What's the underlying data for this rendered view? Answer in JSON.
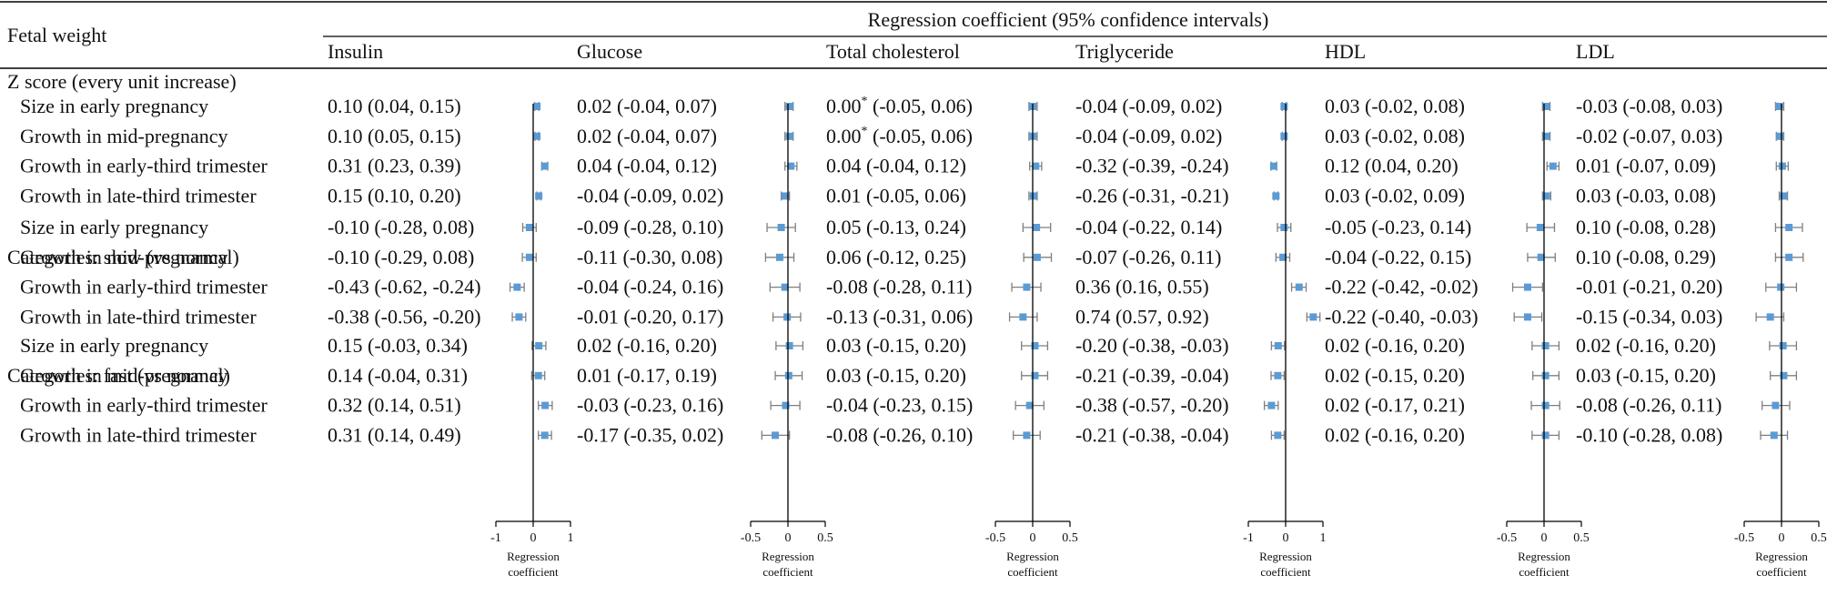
{
  "chart_data": {
    "type": "forest",
    "title": "Regression coefficient (95% confidence intervals)",
    "row_header": "Fetal weight",
    "axis_label_line1": "Regression",
    "axis_label_line2": "coefficient",
    "footnote_marker": "*",
    "sections": [
      {
        "label": "Z score (every unit increase)",
        "rows": [
          "Size in early pregnancy",
          "Growth in mid-pregnancy",
          "Growth in early-third trimester",
          "Growth in late-third trimester"
        ]
      },
      {
        "label": "Categories: slow (vs normal)",
        "rows": [
          "Size in early pregnancy",
          "Growth in mid-pregnancy",
          "Growth in early-third trimester",
          "Growth in late-third trimester"
        ]
      },
      {
        "label": "Categories: fast (vs normal)",
        "rows": [
          "Size in early pregnancy",
          "Growth in mid-pregnancy",
          "Growth in early-third trimester",
          "Growth in late-third trimester"
        ]
      }
    ],
    "series": [
      {
        "name": "Insulin",
        "xlim": [
          -1,
          1
        ],
        "ticks": [
          "-1",
          "0",
          "1"
        ],
        "values": [
          {
            "text": "0.10 (0.04, 0.15)",
            "est": 0.1,
            "lo": 0.04,
            "hi": 0.15
          },
          {
            "text": "0.10 (0.05, 0.15)",
            "est": 0.1,
            "lo": 0.05,
            "hi": 0.15
          },
          {
            "text": "0.31 (0.23, 0.39)",
            "est": 0.31,
            "lo": 0.23,
            "hi": 0.39
          },
          {
            "text": "0.15 (0.10, 0.20)",
            "est": 0.15,
            "lo": 0.1,
            "hi": 0.2
          },
          {
            "text": "-0.10 (-0.28, 0.08)",
            "est": -0.1,
            "lo": -0.28,
            "hi": 0.08
          },
          {
            "text": "-0.10 (-0.29, 0.08)",
            "est": -0.1,
            "lo": -0.29,
            "hi": 0.08
          },
          {
            "text": "-0.43 (-0.62, -0.24)",
            "est": -0.43,
            "lo": -0.62,
            "hi": -0.24
          },
          {
            "text": "-0.38 (-0.56, -0.20)",
            "est": -0.38,
            "lo": -0.56,
            "hi": -0.2
          },
          {
            "text": "0.15 (-0.03, 0.34)",
            "est": 0.15,
            "lo": -0.03,
            "hi": 0.34
          },
          {
            "text": "0.14 (-0.04, 0.31)",
            "est": 0.14,
            "lo": -0.04,
            "hi": 0.31
          },
          {
            "text": "0.32 (0.14, 0.51)",
            "est": 0.32,
            "lo": 0.14,
            "hi": 0.51
          },
          {
            "text": "0.31 (0.14, 0.49)",
            "est": 0.31,
            "lo": 0.14,
            "hi": 0.49
          }
        ]
      },
      {
        "name": "Glucose",
        "xlim": [
          -0.5,
          0.5
        ],
        "ticks": [
          "-0.5",
          "0",
          "0.5"
        ],
        "values": [
          {
            "text": "0.02 (-0.04, 0.07)",
            "est": 0.02,
            "lo": -0.04,
            "hi": 0.07
          },
          {
            "text": "0.02 (-0.04, 0.07)",
            "est": 0.02,
            "lo": -0.04,
            "hi": 0.07
          },
          {
            "text": "0.04 (-0.04, 0.12)",
            "est": 0.04,
            "lo": -0.04,
            "hi": 0.12
          },
          {
            "text": "-0.04 (-0.09, 0.02)",
            "est": -0.04,
            "lo": -0.09,
            "hi": 0.02
          },
          {
            "text": "-0.09 (-0.28, 0.10)",
            "est": -0.09,
            "lo": -0.28,
            "hi": 0.1
          },
          {
            "text": "-0.11 (-0.30, 0.08)",
            "est": -0.11,
            "lo": -0.3,
            "hi": 0.08
          },
          {
            "text": "-0.04 (-0.24, 0.16)",
            "est": -0.04,
            "lo": -0.24,
            "hi": 0.16
          },
          {
            "text": "-0.01 (-0.20, 0.17)",
            "est": -0.01,
            "lo": -0.2,
            "hi": 0.17
          },
          {
            "text": "0.02 (-0.16, 0.20)",
            "est": 0.02,
            "lo": -0.16,
            "hi": 0.2
          },
          {
            "text": "0.01 (-0.17, 0.19)",
            "est": 0.01,
            "lo": -0.17,
            "hi": 0.19
          },
          {
            "text": "-0.03 (-0.23, 0.16)",
            "est": -0.03,
            "lo": -0.23,
            "hi": 0.16
          },
          {
            "text": "-0.17 (-0.35, 0.02)",
            "est": -0.17,
            "lo": -0.35,
            "hi": 0.02
          }
        ]
      },
      {
        "name": "Total cholesterol",
        "xlim": [
          -0.5,
          0.5
        ],
        "ticks": [
          "-0.5",
          "0",
          "0.5"
        ],
        "values": [
          {
            "text": "0.00",
            "star": true,
            "rest": "(-0.05, 0.06)",
            "est": 0.0,
            "lo": -0.05,
            "hi": 0.06
          },
          {
            "text": "0.00",
            "star": true,
            "rest": "(-0.05, 0.06)",
            "est": 0.0,
            "lo": -0.05,
            "hi": 0.06
          },
          {
            "text": "0.04 (-0.04, 0.12)",
            "est": 0.04,
            "lo": -0.04,
            "hi": 0.12
          },
          {
            "text": "0.01 (-0.05, 0.06)",
            "est": 0.01,
            "lo": -0.05,
            "hi": 0.06
          },
          {
            "text": "0.05 (-0.13, 0.24)",
            "est": 0.05,
            "lo": -0.13,
            "hi": 0.24
          },
          {
            "text": "0.06 (-0.12, 0.25)",
            "est": 0.06,
            "lo": -0.12,
            "hi": 0.25
          },
          {
            "text": "-0.08 (-0.28, 0.11)",
            "est": -0.08,
            "lo": -0.28,
            "hi": 0.11
          },
          {
            "text": "-0.13 (-0.31, 0.06)",
            "est": -0.13,
            "lo": -0.31,
            "hi": 0.06
          },
          {
            "text": "0.03 (-0.15, 0.20)",
            "est": 0.03,
            "lo": -0.15,
            "hi": 0.2
          },
          {
            "text": "0.03 (-0.15, 0.20)",
            "est": 0.03,
            "lo": -0.15,
            "hi": 0.2
          },
          {
            "text": "-0.04 (-0.23, 0.15)",
            "est": -0.04,
            "lo": -0.23,
            "hi": 0.15
          },
          {
            "text": "-0.08 (-0.26, 0.10)",
            "est": -0.08,
            "lo": -0.26,
            "hi": 0.1
          }
        ]
      },
      {
        "name": "Triglyceride",
        "xlim": [
          -1,
          1
        ],
        "ticks": [
          "-1",
          "0",
          "1"
        ],
        "values": [
          {
            "text": "-0.04 (-0.09, 0.02)",
            "est": -0.04,
            "lo": -0.09,
            "hi": 0.02
          },
          {
            "text": "-0.04 (-0.09, 0.02)",
            "est": -0.04,
            "lo": -0.09,
            "hi": 0.02
          },
          {
            "text": "-0.32 (-0.39, -0.24)",
            "est": -0.32,
            "lo": -0.39,
            "hi": -0.24
          },
          {
            "text": "-0.26 (-0.31, -0.21)",
            "est": -0.26,
            "lo": -0.31,
            "hi": -0.21
          },
          {
            "text": "-0.04 (-0.22, 0.14)",
            "est": -0.04,
            "lo": -0.22,
            "hi": 0.14
          },
          {
            "text": "-0.07 (-0.26, 0.11)",
            "est": -0.07,
            "lo": -0.26,
            "hi": 0.11
          },
          {
            "text": "0.36 (0.16, 0.55)",
            "est": 0.36,
            "lo": 0.16,
            "hi": 0.55
          },
          {
            "text": "0.74 (0.57, 0.92)",
            "est": 0.74,
            "lo": 0.57,
            "hi": 0.92
          },
          {
            "text": "-0.20 (-0.38, -0.03)",
            "est": -0.2,
            "lo": -0.38,
            "hi": -0.03
          },
          {
            "text": "-0.21 (-0.39, -0.04)",
            "est": -0.21,
            "lo": -0.39,
            "hi": -0.04
          },
          {
            "text": "-0.38 (-0.57, -0.20)",
            "est": -0.38,
            "lo": -0.57,
            "hi": -0.2
          },
          {
            "text": "-0.21 (-0.38, -0.04)",
            "est": -0.21,
            "lo": -0.38,
            "hi": -0.04
          }
        ]
      },
      {
        "name": "HDL",
        "xlim": [
          -0.5,
          0.5
        ],
        "ticks": [
          "-0.5",
          "0",
          "0.5"
        ],
        "values": [
          {
            "text": "0.03 (-0.02, 0.08)",
            "est": 0.03,
            "lo": -0.02,
            "hi": 0.08
          },
          {
            "text": "0.03 (-0.02, 0.08)",
            "est": 0.03,
            "lo": -0.02,
            "hi": 0.08
          },
          {
            "text": "0.12  (0.04, 0.20)",
            "est": 0.12,
            "lo": 0.04,
            "hi": 0.2
          },
          {
            "text": "0.03 (-0.02, 0.09)",
            "est": 0.03,
            "lo": -0.02,
            "hi": 0.09
          },
          {
            "text": "-0.05 (-0.23, 0.14)",
            "est": -0.05,
            "lo": -0.23,
            "hi": 0.14
          },
          {
            "text": "-0.04 (-0.22, 0.15)",
            "est": -0.04,
            "lo": -0.22,
            "hi": 0.15
          },
          {
            "text": "-0.22 (-0.42, -0.02)",
            "est": -0.22,
            "lo": -0.42,
            "hi": -0.02
          },
          {
            "text": "-0.22 (-0.40, -0.03)",
            "est": -0.22,
            "lo": -0.4,
            "hi": -0.03
          },
          {
            "text": "0.02 (-0.16, 0.20)",
            "est": 0.02,
            "lo": -0.16,
            "hi": 0.2
          },
          {
            "text": "0.02 (-0.15, 0.20)",
            "est": 0.02,
            "lo": -0.15,
            "hi": 0.2
          },
          {
            "text": "0.02 (-0.17, 0.21)",
            "est": 0.02,
            "lo": -0.17,
            "hi": 0.21
          },
          {
            "text": "0.02 (-0.16, 0.20)",
            "est": 0.02,
            "lo": -0.16,
            "hi": 0.2
          }
        ]
      },
      {
        "name": "LDL",
        "xlim": [
          -0.5,
          0.5
        ],
        "ticks": [
          "-0.5",
          "0",
          "0.5"
        ],
        "values": [
          {
            "text": "-0.03 (-0.08, 0.03)",
            "est": -0.03,
            "lo": -0.08,
            "hi": 0.03
          },
          {
            "text": "-0.02 (-0.07, 0.03)",
            "est": -0.02,
            "lo": -0.07,
            "hi": 0.03
          },
          {
            "text": "0.01 (-0.07, 0.09)",
            "est": 0.01,
            "lo": -0.07,
            "hi": 0.09
          },
          {
            "text": "0.03 (-0.03, 0.08)",
            "est": 0.03,
            "lo": -0.03,
            "hi": 0.08
          },
          {
            "text": "0.10 (-0.08, 0.28)",
            "est": 0.1,
            "lo": -0.08,
            "hi": 0.28
          },
          {
            "text": "0.10 (-0.08, 0.29)",
            "est": 0.1,
            "lo": -0.08,
            "hi": 0.29
          },
          {
            "text": "-0.01 (-0.21, 0.20)",
            "est": -0.01,
            "lo": -0.21,
            "hi": 0.2
          },
          {
            "text": "-0.15 (-0.34, 0.03)",
            "est": -0.15,
            "lo": -0.34,
            "hi": 0.03
          },
          {
            "text": "0.02 (-0.16, 0.20)",
            "est": 0.02,
            "lo": -0.16,
            "hi": 0.2
          },
          {
            "text": "0.03 (-0.15, 0.20)",
            "est": 0.03,
            "lo": -0.15,
            "hi": 0.2
          },
          {
            "text": "-0.08 (-0.26, 0.11)",
            "est": -0.08,
            "lo": -0.26,
            "hi": 0.11
          },
          {
            "text": "-0.10 (-0.28, 0.08)",
            "est": -0.1,
            "lo": -0.28,
            "hi": 0.08
          }
        ]
      }
    ],
    "colors": {
      "marker": "#5b9bd5",
      "whisker": "#7f7f7f",
      "axis": "#000000",
      "rule": "#000000"
    }
  }
}
